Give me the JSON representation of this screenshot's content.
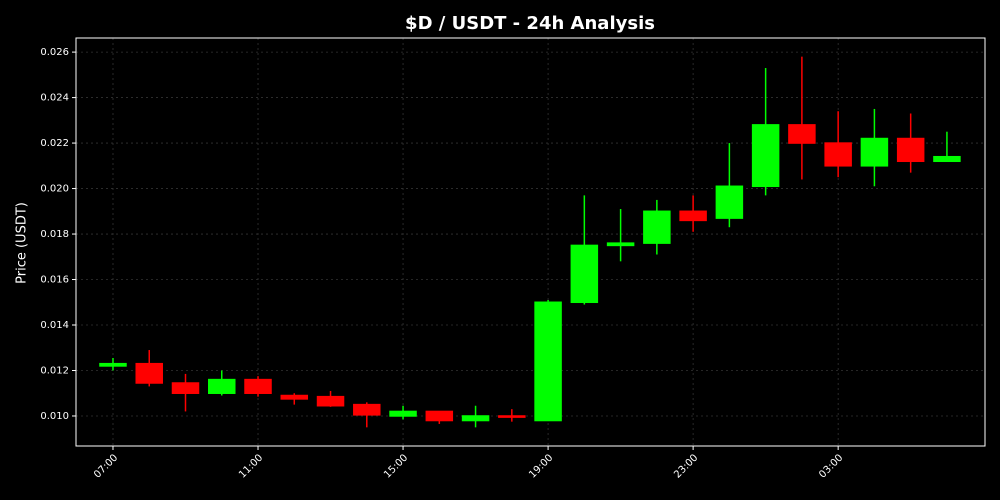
{
  "chart_data": {
    "type": "candlestick",
    "title": "$D / USDT - 24h Analysis",
    "ylabel": "Price (USDT)",
    "categories": [
      "07:00",
      null,
      null,
      null,
      "11:00",
      null,
      null,
      null,
      "15:00",
      null,
      null,
      null,
      "19:00",
      null,
      null,
      null,
      "23:00",
      null,
      null,
      null,
      "03:00",
      null,
      null,
      null
    ],
    "open": [
      0.0122,
      0.0123,
      0.01145,
      0.011,
      0.0116,
      0.0109,
      0.01085,
      0.0105,
      0.01,
      0.0102,
      0.0098,
      0.01,
      0.0098,
      0.015,
      0.0175,
      0.0176,
      0.019,
      0.0187,
      0.0201,
      0.0228,
      0.022,
      0.021,
      0.0222,
      0.0212
    ],
    "high": [
      0.01255,
      0.0129,
      0.01185,
      0.012,
      0.01175,
      0.011,
      0.0111,
      0.0106,
      0.01045,
      0.0102,
      0.01045,
      0.0103,
      0.0151,
      0.0197,
      0.0191,
      0.0195,
      0.0197,
      0.022,
      0.0253,
      0.0258,
      0.0234,
      0.0235,
      0.0233,
      0.0225
    ],
    "low": [
      0.012,
      0.0113,
      0.0102,
      0.0109,
      0.01085,
      0.0105,
      0.0104,
      0.0095,
      0.00985,
      0.00965,
      0.0095,
      0.00975,
      0.0098,
      0.0149,
      0.0168,
      0.0171,
      0.0181,
      0.0183,
      0.0197,
      0.0204,
      0.0205,
      0.0201,
      0.0207,
      0.0212
    ],
    "close": [
      0.0123,
      0.01145,
      0.011,
      0.0116,
      0.011,
      0.01075,
      0.01045,
      0.01005,
      0.0102,
      0.0098,
      0.01,
      0.00995,
      0.015,
      0.0175,
      0.0176,
      0.019,
      0.0186,
      0.0201,
      0.0228,
      0.022,
      0.021,
      0.0222,
      0.0212,
      0.0214
    ],
    "up_color": "#00ff00",
    "down_color": "#ff0000",
    "ylim": [
      0.00868,
      0.02662
    ],
    "yticks": [
      {
        "value": 0.01,
        "label": "0.010"
      },
      {
        "value": 0.012,
        "label": "0.012"
      },
      {
        "value": 0.014,
        "label": "0.014"
      },
      {
        "value": 0.016,
        "label": "0.016"
      },
      {
        "value": 0.018,
        "label": "0.018"
      },
      {
        "value": 0.02,
        "label": "0.020"
      },
      {
        "value": 0.022,
        "label": "0.022"
      },
      {
        "value": 0.024,
        "label": "0.024"
      },
      {
        "value": 0.026,
        "label": "0.026"
      }
    ],
    "grid": true
  }
}
